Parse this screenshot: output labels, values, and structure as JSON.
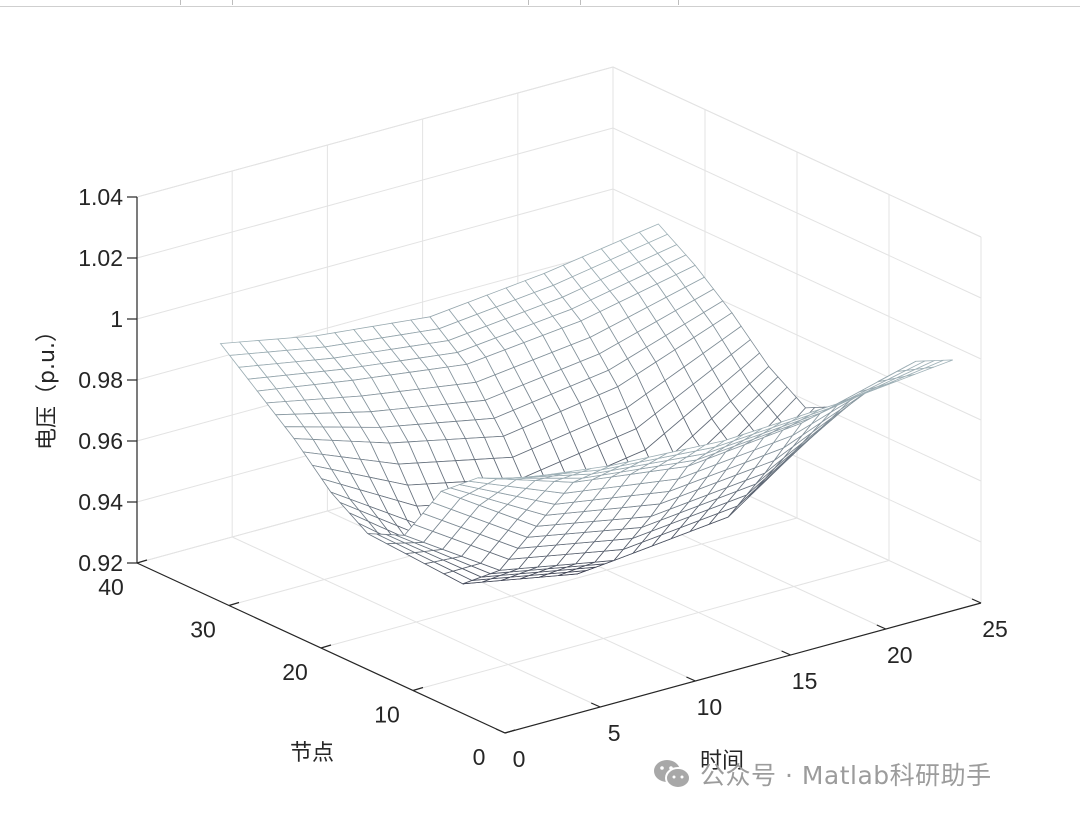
{
  "chart_data": {
    "type": "surface",
    "title": "",
    "xlabel": "时间",
    "ylabel": "节点",
    "zlabel": "电压（p.u.）",
    "xlim": [
      0,
      25
    ],
    "ylim": [
      0,
      40
    ],
    "zlim": [
      0.92,
      1.04
    ],
    "x_ticks": [
      "0",
      "5",
      "10",
      "15",
      "20",
      "25"
    ],
    "y_ticks": [
      "0",
      "10",
      "20",
      "30",
      "40"
    ],
    "z_ticks": [
      "0.92",
      "0.94",
      "0.96",
      "0.98",
      "1",
      "1.02",
      "1.04"
    ],
    "grid": true,
    "time": [
      1,
      6,
      12,
      18,
      24
    ],
    "nodes": [
      1,
      5,
      9,
      13,
      17,
      21,
      25,
      29,
      33
    ],
    "voltage": [
      [
        1.0,
        0.995,
        0.985,
        0.965,
        0.96,
        0.968,
        0.98,
        0.99,
        1.0
      ],
      [
        0.996,
        0.985,
        0.965,
        0.945,
        0.935,
        0.948,
        0.97,
        0.985,
        0.994
      ],
      [
        0.994,
        0.98,
        0.958,
        0.938,
        0.928,
        0.94,
        0.962,
        0.98,
        0.99
      ],
      [
        0.996,
        0.984,
        0.962,
        0.942,
        0.932,
        0.946,
        0.968,
        0.984,
        0.994
      ],
      [
        1.0,
        0.994,
        0.982,
        0.968,
        0.962,
        0.97,
        0.982,
        0.992,
        1.0
      ]
    ]
  },
  "watermark": {
    "icon": "wechat-icon",
    "text": "公众号 · Matlab科研助手"
  },
  "colors": {
    "mesh_low": "#1f1f33",
    "mesh_high": "#d6f0f0",
    "face": "#ffffff",
    "grid": "#e3e3e3",
    "axis": "#262626",
    "watermark": "#9c9c9c"
  }
}
